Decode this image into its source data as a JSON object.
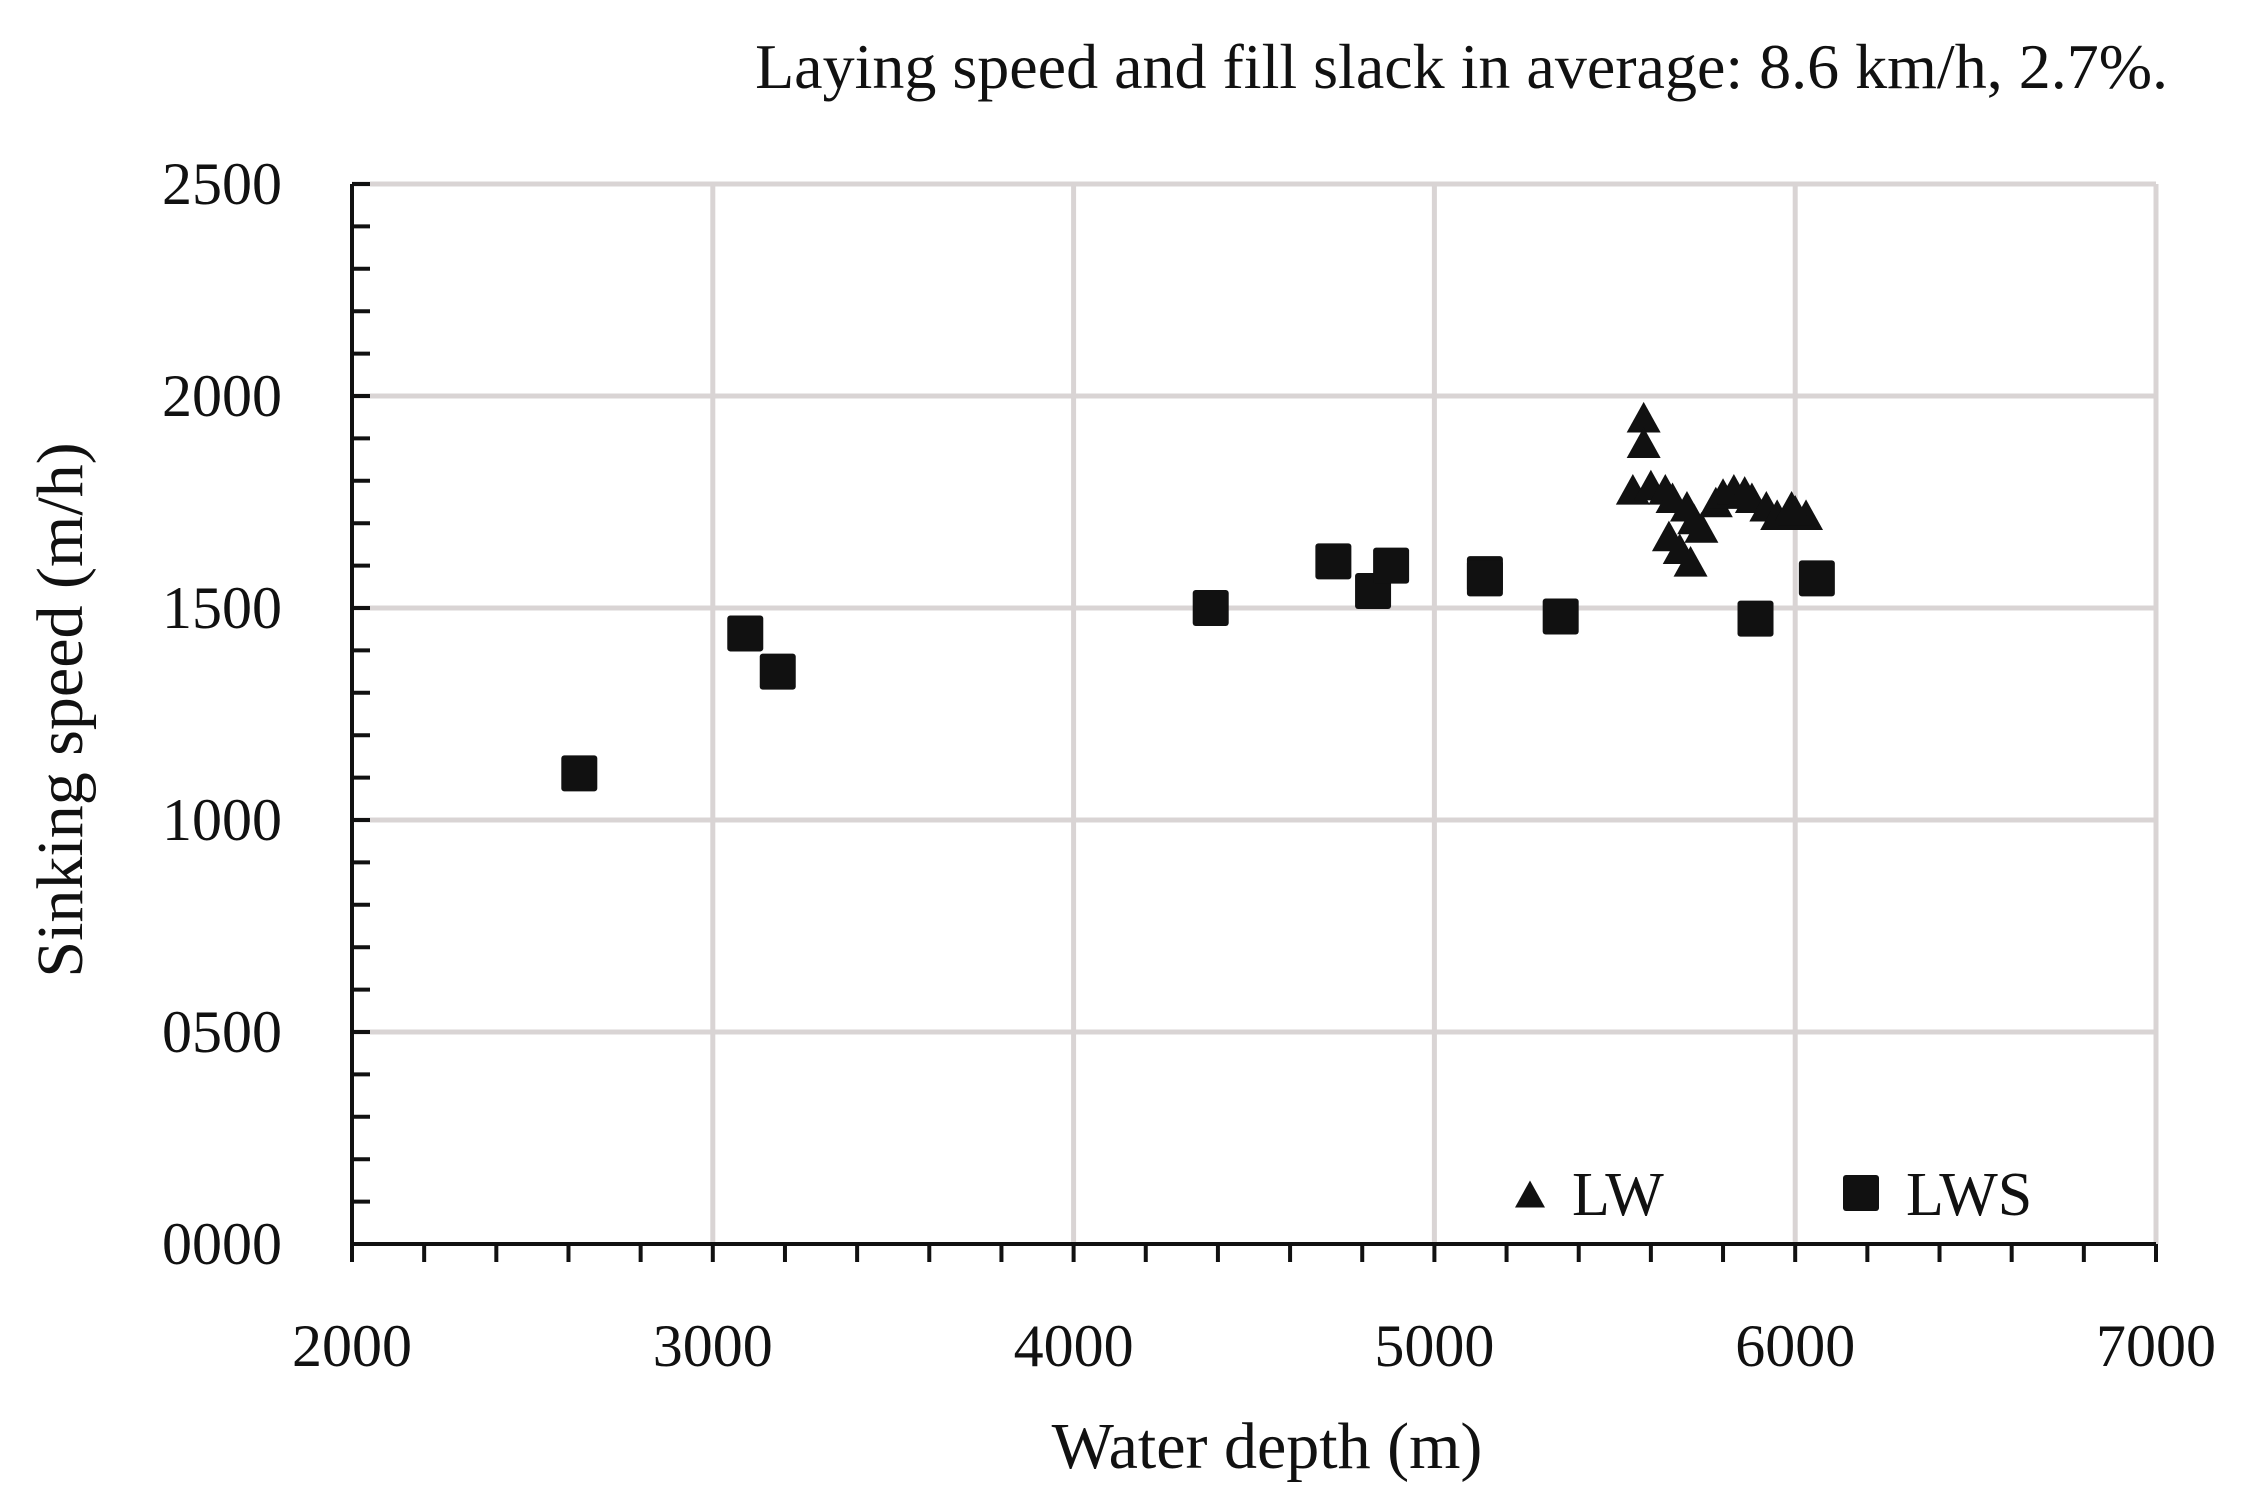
{
  "chart_data": {
    "type": "scatter",
    "title": "Laying speed and fill slack in average: 8.6 km/h, 2.7%.",
    "xlabel": "Water depth (m)",
    "ylabel": "Sinking speed (m/h)",
    "xlim": [
      2000,
      7000
    ],
    "ylim": [
      0,
      2500
    ],
    "x_ticks": [
      "2000",
      "3000",
      "4000",
      "5000",
      "6000",
      "7000"
    ],
    "y_ticks": [
      "0000",
      "0500",
      "1000",
      "1500",
      "2000",
      "2500"
    ],
    "grid": true,
    "legend_position": "bottom-right",
    "colors": {
      "grid": "#d9d4d4",
      "axis": "#111111",
      "marker": "#111111"
    },
    "series": [
      {
        "name": "LW",
        "marker": "triangle",
        "points": [
          {
            "x": 5580,
            "y": 1950
          },
          {
            "x": 5580,
            "y": 1890
          },
          {
            "x": 5550,
            "y": 1780
          },
          {
            "x": 5600,
            "y": 1790
          },
          {
            "x": 5640,
            "y": 1780
          },
          {
            "x": 5660,
            "y": 1760
          },
          {
            "x": 5700,
            "y": 1740
          },
          {
            "x": 5720,
            "y": 1710
          },
          {
            "x": 5650,
            "y": 1670
          },
          {
            "x": 5680,
            "y": 1640
          },
          {
            "x": 5740,
            "y": 1690
          },
          {
            "x": 5710,
            "y": 1610
          },
          {
            "x": 5780,
            "y": 1750
          },
          {
            "x": 5800,
            "y": 1770
          },
          {
            "x": 5830,
            "y": 1780
          },
          {
            "x": 5860,
            "y": 1775
          },
          {
            "x": 5880,
            "y": 1760
          },
          {
            "x": 5920,
            "y": 1740
          },
          {
            "x": 5950,
            "y": 1720
          },
          {
            "x": 5990,
            "y": 1740
          },
          {
            "x": 6030,
            "y": 1720
          },
          {
            "x": 6000,
            "y": 1730
          }
        ]
      },
      {
        "name": "LWS",
        "marker": "square",
        "points": [
          {
            "x": 2630,
            "y": 1110
          },
          {
            "x": 3090,
            "y": 1440
          },
          {
            "x": 3180,
            "y": 1350
          },
          {
            "x": 4380,
            "y": 1500
          },
          {
            "x": 4720,
            "y": 1610
          },
          {
            "x": 4830,
            "y": 1540
          },
          {
            "x": 4880,
            "y": 1600
          },
          {
            "x": 5140,
            "y": 1580
          },
          {
            "x": 5140,
            "y": 1570
          },
          {
            "x": 5350,
            "y": 1480
          },
          {
            "x": 5890,
            "y": 1475
          },
          {
            "x": 6060,
            "y": 1570
          }
        ]
      }
    ]
  }
}
